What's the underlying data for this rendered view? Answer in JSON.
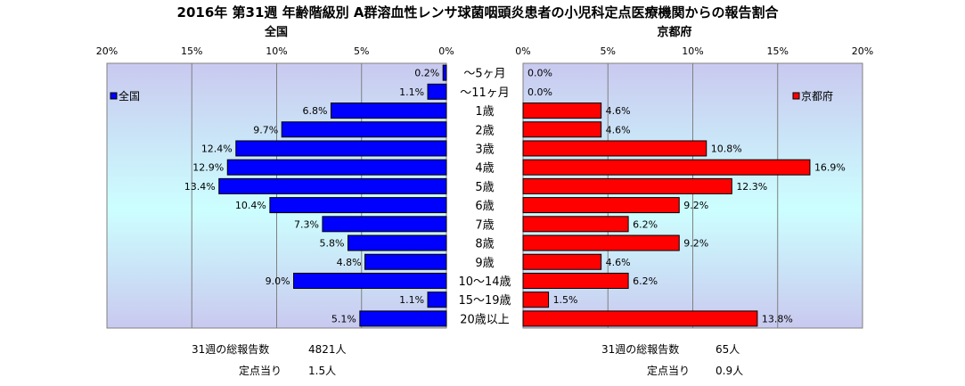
{
  "chart_data": {
    "type": "bar",
    "title": "2016年 第31週 年齢階級別 A群溶血性レンサ球菌咽頭炎患者の小児科定点医療機関からの報告割合",
    "categories": [
      "～5ヶ月",
      "～11ヶ月",
      "1歳",
      "2歳",
      "3歳",
      "4歳",
      "5歳",
      "6歳",
      "7歳",
      "8歳",
      "9歳",
      "10～14歳",
      "15～19歳",
      "20歳以上"
    ],
    "x_ticks": [
      "20%",
      "15%",
      "10%",
      "5%",
      "0%"
    ],
    "x_ticks_right": [
      "0%",
      "5%",
      "10%",
      "15%",
      "20%"
    ],
    "xlim": [
      0,
      20
    ],
    "grid": true,
    "panels": [
      {
        "heading": "全国",
        "legend_label": "全国",
        "legend_position": "top-left",
        "direction": "left",
        "color": "#0000ff",
        "values": [
          0.2,
          1.1,
          6.8,
          9.7,
          12.4,
          12.9,
          13.4,
          10.4,
          7.3,
          5.8,
          4.8,
          9.0,
          1.1,
          5.1
        ],
        "labels": [
          "0.2%",
          "1.1%",
          "6.8%",
          "9.7%",
          "12.4%",
          "12.9%",
          "13.4%",
          "10.4%",
          "7.3%",
          "5.8%",
          "4.8%",
          "9.0%",
          "1.1%",
          "5.1%"
        ]
      },
      {
        "heading": "京都府",
        "legend_label": "京都府",
        "legend_position": "top-right",
        "direction": "right",
        "color": "#ff0000",
        "values": [
          0.0,
          0.0,
          4.6,
          4.6,
          10.8,
          16.9,
          12.3,
          9.2,
          6.2,
          9.2,
          4.6,
          6.2,
          1.5,
          13.8
        ],
        "labels": [
          "0.0%",
          "0.0%",
          "4.6%",
          "4.6%",
          "10.8%",
          "16.9%",
          "12.3%",
          "9.2%",
          "6.2%",
          "9.2%",
          "4.6%",
          "6.2%",
          "1.5%",
          "13.8%"
        ]
      }
    ]
  },
  "footer": {
    "left": {
      "total_label": "31週の総報告数",
      "total_value": "4821人",
      "per_label": "定点当り",
      "per_value": "1.5人"
    },
    "right": {
      "total_label": "31週の総報告数",
      "total_value": "65人",
      "per_label": "定点当り",
      "per_value": "0.9人"
    }
  }
}
